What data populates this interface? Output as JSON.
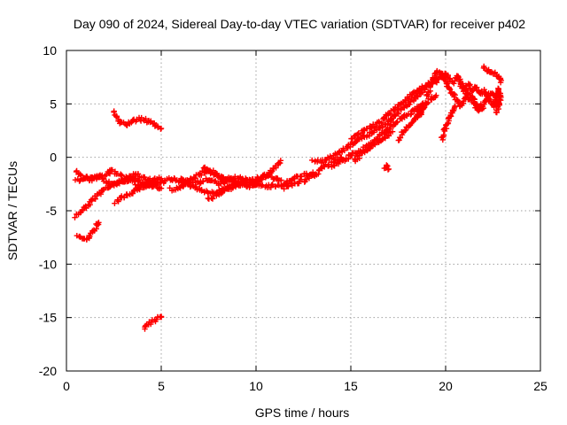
{
  "chart_data": {
    "type": "scatter",
    "title": "Day 090 of 2024, Sidereal Day-to-day VTEC variation (SDTVAR) for receiver p402",
    "xlabel": "GPS time / hours",
    "ylabel": "SDTVAR / TECUs",
    "xlim": [
      0,
      25
    ],
    "ylim": [
      -20,
      10
    ],
    "xticks": [
      "0",
      "5",
      "10",
      "15",
      "20",
      "25"
    ],
    "yticks": [
      "10",
      "5",
      "0",
      "-5",
      "-10",
      "-15",
      "-20"
    ],
    "grid": true,
    "marker": "plus",
    "color": "#ff0000",
    "series": [
      {
        "name": "SDTVAR",
        "tracks": [
          [
            [
              0.5,
              -5.5
            ],
            [
              0.8,
              -5.0
            ],
            [
              1.2,
              -4.3
            ],
            [
              1.6,
              -3.6
            ],
            [
              2.0,
              -3.0
            ],
            [
              2.5,
              -2.5
            ],
            [
              3.0,
              -2.2
            ],
            [
              3.5,
              -2.0
            ],
            [
              4.0,
              -2.2
            ],
            [
              4.5,
              -2.6
            ],
            [
              5.0,
              -2.9
            ]
          ],
          [
            [
              0.5,
              -1.3
            ],
            [
              0.8,
              -1.8
            ],
            [
              1.2,
              -2.0
            ],
            [
              1.6,
              -1.9
            ],
            [
              2.0,
              -1.6
            ],
            [
              2.4,
              -1.3
            ],
            [
              2.8,
              -1.6
            ],
            [
              3.2,
              -2.0
            ],
            [
              3.6,
              -2.4
            ],
            [
              4.0,
              -2.6
            ],
            [
              4.4,
              -2.5
            ],
            [
              4.8,
              -2.3
            ]
          ],
          [
            [
              0.5,
              -2.2
            ],
            [
              0.9,
              -2.0
            ],
            [
              1.3,
              -2.1
            ],
            [
              1.7,
              -1.8
            ],
            [
              2.1,
              -2.3
            ],
            [
              2.5,
              -2.6
            ],
            [
              2.9,
              -2.3
            ],
            [
              3.3,
              -1.9
            ],
            [
              3.7,
              -1.6
            ],
            [
              4.1,
              -1.9
            ],
            [
              4.5,
              -2.2
            ],
            [
              5.0,
              -2.0
            ]
          ],
          [
            [
              2.6,
              -4.2
            ],
            [
              2.9,
              -3.8
            ],
            [
              3.3,
              -3.4
            ],
            [
              3.7,
              -3.0
            ],
            [
              4.1,
              -2.7
            ],
            [
              4.5,
              -2.5
            ],
            [
              5.0,
              -2.3
            ]
          ],
          [
            [
              2.5,
              4.2
            ],
            [
              2.7,
              3.6
            ],
            [
              2.9,
              3.2
            ],
            [
              3.2,
              3.1
            ],
            [
              3.5,
              3.4
            ],
            [
              3.8,
              3.6
            ],
            [
              4.1,
              3.5
            ],
            [
              4.4,
              3.3
            ],
            [
              4.7,
              3.0
            ],
            [
              5.0,
              2.7
            ]
          ],
          [
            [
              0.6,
              -7.4
            ],
            [
              0.9,
              -7.6
            ],
            [
              1.2,
              -7.5
            ],
            [
              1.4,
              -7.0
            ],
            [
              1.6,
              -6.4
            ],
            [
              1.7,
              -6.1
            ]
          ],
          [
            [
              4.1,
              -16.0
            ],
            [
              4.3,
              -15.6
            ],
            [
              4.5,
              -15.3
            ],
            [
              4.7,
              -15.2
            ],
            [
              4.9,
              -15.0
            ],
            [
              5.0,
              -14.9
            ]
          ],
          [
            [
              5.0,
              -2.4
            ],
            [
              5.5,
              -2.0
            ],
            [
              6.0,
              -2.3
            ],
            [
              6.5,
              -2.1
            ],
            [
              7.0,
              -2.4
            ],
            [
              7.5,
              -2.0
            ],
            [
              8.0,
              -2.5
            ],
            [
              8.5,
              -2.2
            ],
            [
              9.0,
              -1.9
            ],
            [
              9.5,
              -2.3
            ],
            [
              10.0,
              -2.0
            ],
            [
              10.5,
              -1.6
            ],
            [
              11.0,
              -2.0
            ],
            [
              11.5,
              -2.4
            ],
            [
              12.0,
              -2.0
            ],
            [
              12.5,
              -1.6
            ],
            [
              13.0,
              -1.8
            ],
            [
              13.5,
              -1.0
            ],
            [
              14.0,
              -0.5
            ],
            [
              14.5,
              0.0
            ]
          ],
          [
            [
              5.5,
              -3.0
            ],
            [
              6.0,
              -2.8
            ],
            [
              6.5,
              -2.2
            ],
            [
              7.0,
              -1.6
            ],
            [
              7.5,
              -1.2
            ],
            [
              8.0,
              -1.6
            ],
            [
              8.5,
              -2.0
            ],
            [
              9.0,
              -2.4
            ],
            [
              9.5,
              -2.8
            ],
            [
              10.0,
              -2.4
            ],
            [
              10.5,
              -1.8
            ],
            [
              11.0,
              -1.0
            ],
            [
              11.3,
              -0.3
            ]
          ],
          [
            [
              6.0,
              -2.0
            ],
            [
              6.5,
              -2.6
            ],
            [
              7.0,
              -3.0
            ],
            [
              7.5,
              -3.4
            ],
            [
              8.0,
              -3.2
            ],
            [
              8.5,
              -2.8
            ],
            [
              9.0,
              -2.4
            ],
            [
              9.5,
              -2.1
            ],
            [
              10.0,
              -2.4
            ],
            [
              10.5,
              -2.8
            ],
            [
              11.0,
              -2.6
            ],
            [
              11.5,
              -2.8
            ],
            [
              12.0,
              -2.4
            ],
            [
              12.5,
              -2.2
            ],
            [
              13.0,
              -1.4
            ]
          ],
          [
            [
              7.5,
              -4.0
            ],
            [
              8.0,
              -3.5
            ],
            [
              8.5,
              -3.0
            ],
            [
              9.0,
              -2.6
            ],
            [
              9.5,
              -2.4
            ],
            [
              10.0,
              -2.6
            ]
          ],
          [
            [
              7.2,
              -1.0
            ],
            [
              7.6,
              -1.4
            ],
            [
              8.0,
              -1.8
            ],
            [
              8.4,
              -2.2
            ],
            [
              8.8,
              -2.0
            ]
          ],
          [
            [
              13.0,
              -0.2
            ],
            [
              13.5,
              -0.4
            ],
            [
              14.0,
              0.0
            ],
            [
              14.5,
              0.6
            ],
            [
              15.0,
              1.2
            ],
            [
              15.5,
              1.8
            ],
            [
              16.0,
              2.2
            ],
            [
              16.5,
              2.8
            ],
            [
              17.0,
              3.4
            ],
            [
              17.5,
              4.2
            ],
            [
              18.0,
              5.0
            ],
            [
              18.5,
              5.8
            ],
            [
              19.0,
              6.6
            ],
            [
              19.5,
              7.4
            ]
          ],
          [
            [
              14.0,
              -0.8
            ],
            [
              14.5,
              -0.4
            ],
            [
              15.0,
              0.2
            ],
            [
              15.5,
              0.6
            ],
            [
              16.0,
              1.2
            ],
            [
              16.5,
              2.0
            ],
            [
              17.0,
              2.8
            ],
            [
              17.5,
              3.4
            ],
            [
              18.0,
              4.0
            ],
            [
              18.5,
              4.6
            ],
            [
              19.0,
              5.2
            ],
            [
              19.5,
              5.8
            ]
          ],
          [
            [
              15.0,
              1.6
            ],
            [
              15.5,
              2.2
            ],
            [
              16.0,
              2.8
            ],
            [
              16.5,
              3.2
            ],
            [
              17.0,
              4.0
            ],
            [
              17.5,
              4.8
            ],
            [
              18.0,
              5.6
            ],
            [
              18.5,
              6.2
            ],
            [
              19.0,
              6.8
            ],
            [
              19.4,
              7.2
            ]
          ],
          [
            [
              15.2,
              -0.4
            ],
            [
              15.6,
              0.4
            ],
            [
              16.0,
              0.8
            ],
            [
              16.4,
              1.4
            ],
            [
              16.8,
              1.8
            ],
            [
              17.2,
              2.4
            ]
          ],
          [
            [
              16.8,
              -1.0
            ],
            [
              16.9,
              -0.8
            ],
            [
              17.0,
              -1.1
            ]
          ],
          [
            [
              17.5,
              1.6
            ],
            [
              17.8,
              2.4
            ],
            [
              18.2,
              3.2
            ],
            [
              18.6,
              4.0
            ],
            [
              19.0,
              5.0
            ]
          ],
          [
            [
              18.5,
              3.8
            ],
            [
              18.6,
              4.4
            ],
            [
              18.7,
              4.0
            ]
          ],
          [
            [
              19.0,
              5.8
            ],
            [
              19.2,
              6.6
            ],
            [
              19.4,
              7.6
            ],
            [
              19.6,
              8.2
            ],
            [
              19.8,
              7.8
            ],
            [
              20.0,
              7.0
            ],
            [
              20.2,
              6.4
            ],
            [
              20.4,
              6.0
            ],
            [
              20.6,
              5.2
            ],
            [
              20.8,
              4.8
            ],
            [
              21.0,
              5.4
            ],
            [
              21.2,
              6.0
            ],
            [
              21.4,
              5.6
            ],
            [
              21.6,
              5.0
            ],
            [
              21.8,
              4.6
            ],
            [
              22.0,
              5.0
            ],
            [
              22.2,
              5.6
            ],
            [
              22.4,
              5.2
            ],
            [
              22.6,
              4.8
            ],
            [
              22.8,
              5.4
            ]
          ],
          [
            [
              19.5,
              7.0
            ],
            [
              19.8,
              7.6
            ],
            [
              20.0,
              7.8
            ],
            [
              20.2,
              7.4
            ],
            [
              20.4,
              7.0
            ],
            [
              20.6,
              7.6
            ],
            [
              20.8,
              7.0
            ],
            [
              21.0,
              6.4
            ],
            [
              21.2,
              6.8
            ],
            [
              21.4,
              6.2
            ],
            [
              21.6,
              6.6
            ],
            [
              21.8,
              6.0
            ],
            [
              22.0,
              6.2
            ],
            [
              22.2,
              5.6
            ],
            [
              22.4,
              6.0
            ],
            [
              22.6,
              5.6
            ],
            [
              22.8,
              6.4
            ]
          ],
          [
            [
              19.8,
              1.6
            ],
            [
              19.9,
              2.2
            ],
            [
              20.0,
              2.8
            ],
            [
              20.1,
              3.2
            ],
            [
              20.2,
              3.8
            ],
            [
              20.4,
              4.4
            ],
            [
              20.5,
              4.8
            ]
          ],
          [
            [
              20.8,
              6.8
            ],
            [
              21.0,
              6.2
            ],
            [
              21.2,
              5.6
            ],
            [
              21.4,
              5.2
            ],
            [
              21.6,
              4.8
            ],
            [
              21.8,
              4.4
            ],
            [
              22.0,
              4.6
            ]
          ],
          [
            [
              22.0,
              8.4
            ],
            [
              22.2,
              8.2
            ],
            [
              22.4,
              8.0
            ],
            [
              22.6,
              7.8
            ],
            [
              22.8,
              7.6
            ],
            [
              22.9,
              7.0
            ]
          ],
          [
            [
              22.6,
              4.8
            ],
            [
              22.7,
              5.6
            ],
            [
              22.8,
              6.4
            ],
            [
              22.9,
              5.4
            ],
            [
              22.7,
              4.2
            ]
          ]
        ]
      }
    ]
  }
}
